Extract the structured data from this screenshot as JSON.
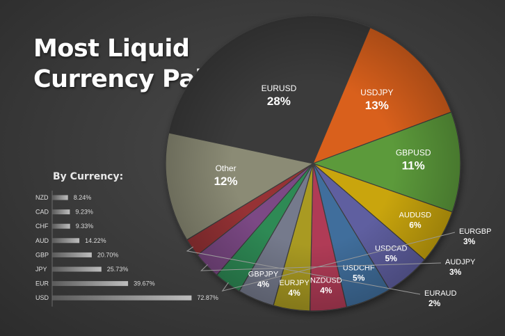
{
  "title_lines": [
    "Most Liquid",
    "Currency Pairs"
  ],
  "chart_data": [
    {
      "type": "pie",
      "title": "Most Liquid Currency Pairs",
      "categories": [
        "EURUSD",
        "USDJPY",
        "GBPUSD",
        "AUDUSD",
        "USDCAD",
        "USDCHF",
        "NZDUSD",
        "EURJPY",
        "GBPJPY",
        "EURGBP",
        "AUDJPY",
        "EURAUD",
        "Other"
      ],
      "values": [
        28,
        13,
        11,
        6,
        5,
        5,
        4,
        4,
        4,
        3,
        3,
        2,
        12
      ],
      "labels": [
        "28%",
        "13%",
        "11%",
        "6%",
        "5%",
        "5%",
        "4%",
        "4%",
        "4%",
        "3%",
        "3%",
        "2%",
        "12%"
      ],
      "colors": [
        "#3b3b3b",
        "#d9611c",
        "#5b9a3b",
        "#c9a50e",
        "#5f5fa0",
        "#406e9c",
        "#b03a56",
        "#a99a23",
        "#747a8c",
        "#2f8a55",
        "#7c4a85",
        "#963336",
        "#8b8b74"
      ]
    },
    {
      "type": "bar",
      "title": "By Currency:",
      "orientation": "horizontal",
      "categories": [
        "NZD",
        "CAD",
        "CHF",
        "AUD",
        "GBP",
        "JPY",
        "EUR",
        "USD"
      ],
      "values": [
        8.24,
        9.23,
        9.33,
        14.22,
        20.7,
        25.73,
        39.67,
        72.87
      ],
      "labels": [
        "8.24%",
        "9.23%",
        "9.33%",
        "14.22%",
        "20.70%",
        "25.73%",
        "39.67%",
        "72.87%"
      ],
      "xlim": [
        0,
        80
      ]
    }
  ]
}
